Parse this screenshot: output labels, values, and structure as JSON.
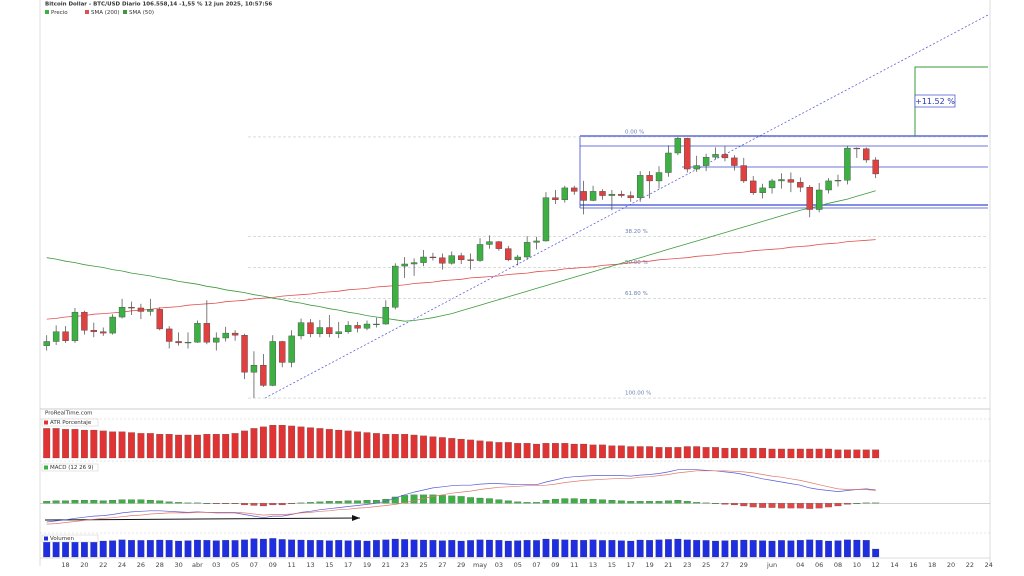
{
  "chart_data": {
    "type": "candlestick",
    "title": "Bitcoin Dollar - BTC/USD Diario 106.558,14 -1,55 % 12 jun 2025, 10:57:56",
    "price_name": "Precio",
    "source": "ProRealTime.com",
    "up_color": "#3cb043",
    "down_color": "#e04040",
    "ylim": [
      73.5,
      130.8
    ],
    "categories": [
      null,
      null,
      "18",
      null,
      "20",
      null,
      "22",
      null,
      "24",
      null,
      "26",
      null,
      "28",
      null,
      "30",
      null,
      "abr",
      null,
      "03",
      null,
      "05",
      null,
      "07",
      null,
      "09",
      null,
      "11",
      null,
      "13",
      null,
      "15",
      null,
      "17",
      null,
      "19",
      null,
      "21",
      null,
      "23",
      null,
      "25",
      null,
      "27",
      null,
      "29",
      null,
      "may",
      null,
      "03",
      null,
      "05",
      null,
      "07",
      null,
      "09",
      null,
      "11",
      null,
      "13",
      null,
      "15",
      null,
      "17",
      null,
      "19",
      null,
      "21",
      null,
      "23",
      null,
      "25",
      null,
      "27",
      null,
      "29",
      null,
      null,
      "jun",
      null,
      null,
      "04",
      null,
      "06",
      null,
      "08",
      null,
      "10",
      null,
      "12",
      null,
      "14",
      null,
      "16",
      null,
      "18",
      null,
      "20",
      null,
      "22",
      null,
      "24"
    ],
    "open": [
      82.0,
      82.6,
      84.0,
      82.7,
      86.8,
      84.2,
      84.0,
      83.8,
      86.1,
      87.5,
      87.4,
      86.9,
      87.2,
      84.4,
      82.6,
      82.4,
      82.5,
      85.2,
      82.5,
      83.1,
      83.8,
      83.5,
      78.2,
      79.2,
      76.3,
      82.6,
      79.6,
      83.4,
      85.3,
      83.7,
      84.6,
      83.7,
      84.0,
      84.9,
      84.5,
      85.1,
      85.1,
      87.5,
      93.4,
      93.7,
      93.9,
      94.7,
      94.6,
      93.8,
      94.9,
      94.3,
      94.2,
      96.5,
      96.9,
      95.9,
      94.3,
      94.7,
      96.8,
      97.0,
      103.2,
      102.9,
      104.6,
      104.1,
      102.8,
      104.1,
      103.5,
      103.7,
      103.5,
      103.2,
      106.4,
      105.6,
      106.8,
      109.6,
      111.7,
      107.3,
      107.8,
      109.0,
      109.4,
      108.9,
      107.8,
      105.6,
      103.9,
      104.6,
      105.6,
      105.8,
      105.4,
      104.7,
      101.5,
      104.3,
      105.6,
      105.7,
      110.3,
      110.2,
      108.6,
      null,
      null,
      null,
      null,
      null,
      null,
      null,
      null,
      null,
      null,
      null,
      null
    ],
    "high": [
      83.5,
      84.9,
      84.8,
      87.4,
      87.0,
      85.3,
      84.6,
      86.5,
      88.7,
      88.3,
      88.0,
      88.7,
      87.5,
      84.8,
      83.9,
      83.9,
      85.6,
      88.5,
      83.9,
      84.7,
      84.2,
      83.7,
      81.2,
      80.8,
      83.5,
      82.7,
      84.2,
      85.9,
      85.8,
      85.7,
      86.4,
      85.4,
      85.5,
      85.4,
      85.6,
      86.0,
      88.5,
      93.8,
      94.7,
      94.5,
      95.7,
      95.3,
      95.2,
      95.5,
      95.3,
      95.2,
      97.4,
      97.8,
      97.0,
      96.3,
      95.0,
      97.7,
      97.6,
      104.0,
      104.3,
      104.9,
      104.9,
      105.6,
      104.9,
      104.4,
      104.3,
      104.2,
      104.1,
      107.0,
      107.0,
      107.7,
      110.7,
      111.9,
      111.8,
      109.2,
      109.5,
      110.4,
      110.6,
      109.3,
      108.9,
      106.3,
      105.2,
      105.9,
      106.7,
      106.8,
      106.1,
      105.0,
      105.3,
      106.0,
      106.5,
      110.6,
      110.4,
      110.4,
      109.0,
      null,
      null,
      null,
      null,
      null,
      null,
      null,
      null,
      null,
      null,
      null,
      null
    ],
    "low": [
      81.3,
      82.1,
      82.4,
      82.4,
      83.6,
      83.2,
      83.4,
      83.6,
      85.9,
      86.4,
      85.8,
      86.3,
      84.2,
      81.6,
      82.0,
      81.6,
      82.4,
      82.2,
      81.3,
      82.6,
      82.7,
      77.2,
      74.5,
      76.1,
      76.2,
      78.9,
      78.9,
      82.9,
      83.2,
      83.2,
      83.2,
      83.1,
      83.7,
      83.9,
      84.2,
      84.6,
      85.0,
      87.2,
      91.7,
      92.0,
      93.4,
      94.2,
      92.9,
      93.6,
      93.7,
      92.9,
      94.0,
      95.9,
      95.6,
      94.1,
      93.5,
      94.3,
      95.8,
      96.9,
      102.3,
      102.5,
      103.6,
      100.8,
      102.7,
      102.9,
      101.4,
      103.2,
      102.6,
      102.6,
      103.1,
      104.5,
      106.2,
      109.3,
      106.8,
      106.9,
      107.0,
      108.7,
      108.4,
      107.1,
      105.3,
      103.6,
      103.1,
      103.8,
      104.5,
      104.0,
      104.0,
      100.4,
      101.1,
      103.8,
      104.8,
      105.1,
      108.9,
      108.2,
      106.0,
      null,
      null,
      null,
      null,
      null,
      null,
      null,
      null,
      null,
      null,
      null,
      null
    ],
    "close": [
      82.6,
      84.0,
      82.7,
      86.8,
      84.2,
      84.0,
      83.8,
      86.1,
      87.5,
      87.4,
      86.9,
      87.2,
      84.4,
      82.6,
      82.4,
      82.5,
      85.2,
      82.5,
      83.1,
      83.8,
      83.5,
      78.2,
      79.2,
      76.3,
      82.6,
      79.6,
      83.4,
      85.3,
      83.7,
      84.6,
      83.7,
      84.0,
      84.9,
      84.5,
      85.1,
      85.1,
      87.5,
      93.4,
      93.7,
      93.9,
      94.7,
      94.6,
      93.8,
      94.9,
      94.3,
      94.2,
      96.5,
      96.9,
      95.9,
      94.3,
      94.7,
      96.8,
      97.0,
      103.2,
      102.9,
      104.6,
      104.1,
      102.8,
      104.1,
      103.5,
      103.7,
      103.5,
      103.2,
      106.4,
      105.6,
      106.8,
      109.6,
      111.7,
      107.3,
      107.8,
      109.0,
      109.4,
      108.9,
      107.8,
      105.6,
      103.9,
      104.6,
      105.6,
      105.8,
      105.4,
      104.7,
      101.5,
      104.3,
      105.6,
      105.7,
      110.3,
      110.2,
      108.6,
      106.6,
      null,
      null,
      null,
      null,
      null,
      null,
      null,
      null,
      null,
      null,
      null,
      null
    ],
    "series": [
      {
        "name": "SMA (200)",
        "color": "#e05050",
        "values": [
          85.8,
          85.9,
          86.1,
          86.2,
          86.3,
          86.5,
          86.6,
          86.7,
          86.8,
          87.0,
          87.1,
          87.2,
          87.4,
          87.5,
          87.6,
          87.8,
          87.9,
          88.0,
          88.1,
          88.3,
          88.4,
          88.5,
          88.7,
          88.8,
          88.9,
          89.1,
          89.2,
          89.3,
          89.4,
          89.6,
          89.7,
          89.8,
          90.0,
          90.1,
          90.2,
          90.4,
          90.5,
          90.6,
          90.7,
          90.9,
          91.0,
          91.1,
          91.3,
          91.4,
          91.5,
          91.7,
          91.8,
          91.9,
          92.0,
          92.2,
          92.3,
          92.4,
          92.6,
          92.7,
          92.8,
          93.0,
          93.1,
          93.2,
          93.3,
          93.5,
          93.6,
          93.7,
          93.9,
          94.0,
          94.1,
          94.3,
          94.4,
          94.5,
          94.6,
          94.8,
          94.9,
          95.0,
          95.2,
          95.3,
          95.4,
          95.6,
          95.7,
          95.8,
          95.9,
          96.1,
          96.2,
          96.3,
          96.5,
          96.6,
          96.7,
          96.9,
          97.0,
          97.1,
          97.2,
          null,
          null,
          null,
          null,
          null,
          null,
          null,
          null,
          null,
          null,
          null,
          null
        ]
      },
      {
        "name": "SMA (50)",
        "color": "#3c9a3c",
        "values": [
          94.6,
          94.4,
          94.1,
          93.9,
          93.6,
          93.4,
          93.2,
          92.9,
          92.7,
          92.4,
          92.2,
          92.0,
          91.7,
          91.5,
          91.2,
          91.0,
          90.8,
          90.5,
          90.3,
          90.0,
          89.8,
          89.6,
          89.3,
          89.1,
          88.8,
          88.6,
          88.3,
          88.1,
          87.8,
          87.6,
          87.3,
          87.1,
          86.8,
          86.6,
          86.3,
          86.1,
          85.9,
          85.7,
          85.5,
          85.6,
          85.8,
          86.0,
          86.3,
          86.6,
          87.0,
          87.4,
          87.8,
          88.2,
          88.6,
          89.0,
          89.4,
          89.8,
          90.2,
          90.6,
          91.0,
          91.4,
          91.8,
          92.2,
          92.6,
          93.0,
          93.4,
          93.8,
          94.2,
          94.6,
          95.0,
          95.4,
          95.8,
          96.2,
          96.6,
          97.0,
          97.4,
          97.8,
          98.2,
          98.6,
          99.0,
          99.4,
          99.8,
          100.2,
          100.6,
          101.0,
          101.4,
          101.7,
          102.0,
          102.4,
          102.7,
          103.0,
          103.4,
          103.8,
          104.2,
          null,
          null,
          null,
          null,
          null,
          null,
          null,
          null,
          null,
          null,
          null,
          null
        ]
      }
    ],
    "fibonacci": {
      "high": 111.9,
      "low": 74.5,
      "levels": [
        {
          "value": 0,
          "label": "0.00 %"
        },
        {
          "value": 38.2,
          "label": "38.20 %"
        },
        {
          "value": 50,
          "label": "50.00 %"
        },
        {
          "value": 61.8,
          "label": "61.80 %"
        },
        {
          "value": 100,
          "label": "100.00 %"
        }
      ]
    },
    "annotation": "+11.52 %",
    "panels": [
      {
        "type": "bar",
        "name": "ATR Porcentaje",
        "color": "#e03434",
        "ylim": [
          0,
          4.5
        ],
        "values": [
          3.6,
          3.6,
          3.5,
          3.5,
          3.4,
          3.4,
          3.3,
          3.2,
          3.2,
          3.1,
          3.0,
          3.0,
          2.9,
          2.9,
          2.8,
          2.8,
          2.8,
          2.9,
          2.9,
          2.9,
          3.0,
          3.3,
          3.6,
          3.8,
          4.0,
          4.0,
          3.9,
          3.8,
          3.7,
          3.6,
          3.5,
          3.4,
          3.3,
          3.2,
          3.1,
          3.0,
          2.9,
          2.9,
          2.9,
          2.8,
          2.7,
          2.6,
          2.5,
          2.4,
          2.3,
          2.2,
          2.1,
          2.0,
          1.9,
          1.9,
          1.8,
          1.8,
          1.7,
          1.8,
          1.8,
          1.8,
          1.7,
          1.7,
          1.6,
          1.6,
          1.5,
          1.5,
          1.4,
          1.4,
          1.4,
          1.3,
          1.3,
          1.3,
          1.4,
          1.4,
          1.3,
          1.3,
          1.2,
          1.2,
          1.2,
          1.2,
          1.2,
          1.1,
          1.1,
          1.1,
          1.1,
          1.1,
          1.1,
          1.1,
          1.0,
          1.0,
          1.0,
          1.0,
          1.0,
          null,
          null,
          null,
          null,
          null,
          null,
          null,
          null,
          null,
          null,
          null,
          null
        ]
      },
      {
        "type": "macd",
        "name": "MACD (12 26 9)",
        "up_color": "#3cb043",
        "down_color": "#e04848",
        "ylim": [
          -5,
          7
        ],
        "histogram": [
          0.4,
          0.5,
          0.5,
          0.6,
          0.6,
          0.6,
          0.5,
          0.6,
          0.7,
          0.7,
          0.7,
          0.6,
          0.5,
          0.3,
          0.2,
          0.1,
          0.1,
          0.0,
          -0.1,
          -0.1,
          -0.1,
          -0.3,
          -0.4,
          -0.5,
          -0.3,
          -0.3,
          -0.1,
          0.1,
          0.2,
          0.3,
          0.4,
          0.4,
          0.5,
          0.5,
          0.6,
          0.6,
          0.8,
          1.2,
          1.5,
          1.6,
          1.6,
          1.6,
          1.5,
          1.4,
          1.3,
          1.1,
          1.0,
          0.9,
          0.7,
          0.5,
          0.3,
          0.2,
          0.2,
          0.6,
          0.8,
          0.9,
          0.9,
          0.8,
          0.8,
          0.7,
          0.6,
          0.5,
          0.4,
          0.4,
          0.4,
          0.4,
          0.5,
          0.6,
          0.4,
          0.2,
          0.1,
          0.0,
          -0.2,
          -0.3,
          -0.5,
          -0.7,
          -0.8,
          -0.8,
          -0.9,
          -0.9,
          -0.9,
          -1.0,
          -0.9,
          -0.7,
          -0.5,
          -0.2,
          0.0,
          0.1,
          0.1,
          null,
          null,
          null,
          null,
          null,
          null,
          null,
          null,
          null,
          null,
          null,
          null
        ],
        "series": [
          {
            "color": "#5a5ad8",
            "values": [
              -3.5,
              -3.3,
              -3.1,
              -2.8,
              -2.6,
              -2.4,
              -2.3,
              -2.1,
              -1.8,
              -1.6,
              -1.5,
              -1.4,
              -1.4,
              -1.5,
              -1.6,
              -1.7,
              -1.6,
              -1.7,
              -1.8,
              -1.8,
              -1.8,
              -2.1,
              -2.4,
              -2.7,
              -2.4,
              -2.4,
              -2.1,
              -1.7,
              -1.5,
              -1.2,
              -1.0,
              -0.8,
              -0.6,
              -0.4,
              -0.2,
              0.0,
              0.4,
              1.0,
              1.6,
              2.1,
              2.5,
              2.9,
              3.1,
              3.3,
              3.4,
              3.4,
              3.6,
              3.7,
              3.7,
              3.6,
              3.5,
              3.5,
              3.5,
              4.0,
              4.4,
              4.8,
              5.0,
              5.1,
              5.2,
              5.2,
              5.2,
              5.2,
              5.1,
              5.3,
              5.4,
              5.6,
              5.9,
              6.3,
              6.3,
              6.3,
              6.2,
              6.1,
              5.9,
              5.7,
              5.4,
              5.0,
              4.6,
              4.3,
              4.0,
              3.7,
              3.4,
              2.9,
              2.6,
              2.4,
              2.2,
              2.4,
              2.6,
              2.7,
              2.5,
              null,
              null,
              null,
              null,
              null,
              null,
              null,
              null,
              null,
              null,
              null,
              null
            ]
          },
          {
            "color": "#e07a6a",
            "values": [
              -3.9,
              -3.8,
              -3.6,
              -3.4,
              -3.2,
              -3.0,
              -2.8,
              -2.7,
              -2.5,
              -2.3,
              -2.2,
              -2.0,
              -1.9,
              -1.8,
              -1.8,
              -1.8,
              -1.7,
              -1.7,
              -1.7,
              -1.7,
              -1.7,
              -1.8,
              -2.0,
              -2.2,
              -2.1,
              -2.1,
              -2.0,
              -1.8,
              -1.7,
              -1.5,
              -1.4,
              -1.2,
              -1.1,
              -0.9,
              -0.8,
              -0.6,
              -0.4,
              -0.2,
              0.1,
              0.5,
              0.9,
              1.3,
              1.6,
              1.9,
              2.1,
              2.3,
              2.6,
              2.8,
              3.0,
              3.1,
              3.2,
              3.3,
              3.3,
              3.4,
              3.6,
              3.9,
              4.1,
              4.3,
              4.4,
              4.5,
              4.6,
              4.7,
              4.7,
              4.9,
              5.0,
              5.2,
              5.4,
              5.7,
              5.9,
              6.1,
              6.1,
              6.1,
              6.1,
              6.0,
              5.9,
              5.7,
              5.4,
              5.1,
              4.9,
              4.6,
              4.3,
              3.9,
              3.5,
              3.1,
              2.7,
              2.6,
              2.6,
              2.6,
              2.4,
              null,
              null,
              null,
              null,
              null,
              null,
              null,
              null,
              null,
              null,
              null,
              null
            ]
          }
        ]
      },
      {
        "type": "bar",
        "name": "Volumen",
        "color": "#1e2ee0",
        "ylim": [
          0,
          100
        ],
        "values": [
          85,
          84,
          86,
          83,
          85,
          84,
          80,
          82,
          86,
          84,
          83,
          84,
          85,
          84,
          80,
          82,
          85,
          84,
          82,
          84,
          83,
          86,
          92,
          90,
          93,
          88,
          86,
          85,
          84,
          84,
          82,
          84,
          82,
          83,
          80,
          84,
          86,
          90,
          88,
          86,
          85,
          84,
          82,
          84,
          80,
          83,
          86,
          85,
          84,
          80,
          82,
          84,
          83,
          90,
          88,
          86,
          85,
          84,
          86,
          83,
          84,
          82,
          80,
          85,
          84,
          86,
          88,
          90,
          86,
          84,
          83,
          80,
          82,
          84,
          85,
          84,
          82,
          80,
          83,
          82,
          84,
          86,
          84,
          80,
          82,
          86,
          85,
          84,
          40,
          null,
          null,
          null,
          null,
          null,
          null,
          null,
          null,
          null,
          null,
          null,
          null
        ]
      }
    ]
  }
}
